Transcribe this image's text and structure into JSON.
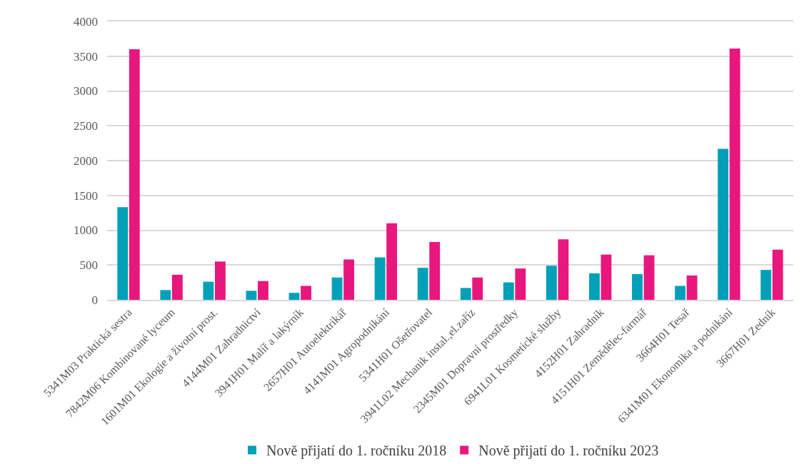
{
  "chart_data": {
    "type": "bar",
    "categories": [
      "5341M03 Praktická sestra",
      "7842M06 Kombinované lyceum",
      "1601M01 Ekologie a životní prost.",
      "4144M01 Zahradnictví",
      "3941H01 Malíř a lakýrník",
      "2657H01 Autoelektrikář",
      "4141M01 Agropodnikání",
      "5341H01 Ošetřovatel",
      "3941L02 Mechanik instal.,el.zaříz",
      "2345M01 Dopravní prostředky",
      "6941L01 Kosmetické služby",
      "4152H01 Zahradník",
      "4151H01 Zemědělec-farmář",
      "3664H01 Tesař",
      "6341M01 Ekonomika a podnikání",
      "3667H01 Zedník"
    ],
    "series": [
      {
        "name": "Nově přijatí do 1. ročníku 2018",
        "color": "#00a0b8",
        "values": [
          1330,
          140,
          260,
          130,
          100,
          320,
          610,
          460,
          170,
          250,
          490,
          380,
          370,
          200,
          2170,
          430
        ]
      },
      {
        "name": "Nově přijatí do 1. ročníku 2023",
        "color": "#e8177d",
        "values": [
          3600,
          360,
          550,
          270,
          200,
          580,
          1100,
          830,
          320,
          450,
          870,
          650,
          640,
          350,
          3610,
          720
        ]
      }
    ],
    "ylim": [
      0,
      4000
    ],
    "yticks": [
      0,
      500,
      1000,
      1500,
      2000,
      2500,
      3000,
      3500,
      4000
    ],
    "grid": "y",
    "legend": "bottom"
  }
}
